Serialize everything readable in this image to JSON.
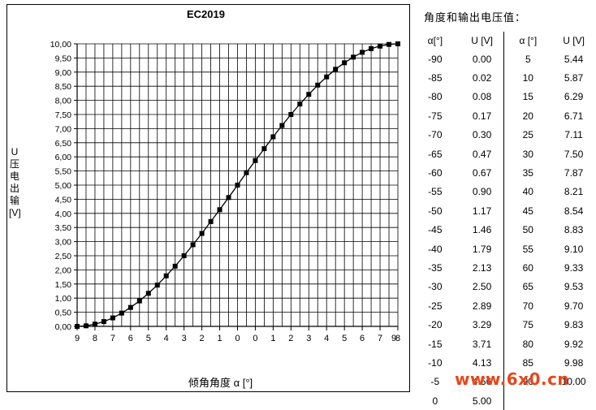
{
  "chart_data": {
    "type": "line",
    "title": "EC2019",
    "xlabel": "倾角角度 α [°]",
    "ylabel": "U 压电出输 [V]",
    "xlim": [
      -90,
      90
    ],
    "ylim": [
      0,
      10
    ],
    "grid": true,
    "y_ticks": [
      "0,00",
      "0,50",
      "1,00",
      "1,50",
      "2,00",
      "2,50",
      "3,00",
      "3,50",
      "4,00",
      "4,50",
      "5,00",
      "5,50",
      "6,00",
      "6,50",
      "7,00",
      "7,50",
      "8,00",
      "8,50",
      "9,00",
      "9,50",
      "10,00"
    ],
    "x_tick_labels": [
      "9",
      "8",
      "7",
      "6",
      "5",
      "4",
      "3",
      "2",
      "1",
      "0",
      "0",
      "1",
      "2",
      "3",
      "4",
      "5",
      "6",
      "7",
      "8",
      "9"
    ],
    "x": [
      -90,
      -85,
      -80,
      -75,
      -70,
      -65,
      -60,
      -55,
      -50,
      -45,
      -40,
      -35,
      -30,
      -25,
      -20,
      -15,
      -10,
      -5,
      0,
      5,
      10,
      15,
      20,
      25,
      30,
      35,
      40,
      45,
      50,
      55,
      60,
      65,
      70,
      75,
      80,
      85,
      90
    ],
    "values": [
      0.0,
      0.02,
      0.08,
      0.17,
      0.3,
      0.47,
      0.67,
      0.9,
      1.17,
      1.46,
      1.79,
      2.13,
      2.5,
      2.89,
      3.29,
      3.71,
      4.13,
      4.56,
      5.0,
      5.44,
      5.87,
      6.29,
      6.71,
      7.11,
      7.5,
      7.87,
      8.21,
      8.54,
      8.83,
      9.1,
      9.33,
      9.53,
      9.7,
      9.83,
      9.92,
      9.98,
      10.0
    ]
  },
  "table": {
    "title": "角度和输出电压值：",
    "headers": [
      "α[°]",
      "U [V]",
      "α [°]",
      "U [V]"
    ],
    "rows": [
      [
        "-90",
        "0.00",
        "5",
        "5.44"
      ],
      [
        "-85",
        "0.02",
        "10",
        "5.87"
      ],
      [
        "-80",
        "0.08",
        "15",
        "6.29"
      ],
      [
        "-75",
        "0.17",
        "20",
        "6.71"
      ],
      [
        "-70",
        "0.30",
        "25",
        "7.11"
      ],
      [
        "-65",
        "0.47",
        "30",
        "7.50"
      ],
      [
        "-60",
        "0.67",
        "35",
        "7.87"
      ],
      [
        "-55",
        "0.90",
        "40",
        "8.21"
      ],
      [
        "-50",
        "1.17",
        "45",
        "8.54"
      ],
      [
        "-45",
        "1.46",
        "50",
        "8.83"
      ],
      [
        "-40",
        "1.79",
        "55",
        "9.10"
      ],
      [
        "-35",
        "2.13",
        "60",
        "9.33"
      ],
      [
        "-30",
        "2.50",
        "65",
        "9.53"
      ],
      [
        "-25",
        "2.89",
        "70",
        "9.70"
      ],
      [
        "-20",
        "3.29",
        "75",
        "9.83"
      ],
      [
        "-15",
        "3.71",
        "80",
        "9.92"
      ],
      [
        "-10",
        "4.13",
        "85",
        "9.98"
      ],
      [
        "-5",
        "4.56",
        "90",
        "10.00"
      ],
      [
        "0",
        "5.00",
        "",
        ""
      ]
    ]
  },
  "watermark": "www.6x0.cn",
  "colors": {
    "line": "#000000",
    "watermark": "#e8461a"
  }
}
